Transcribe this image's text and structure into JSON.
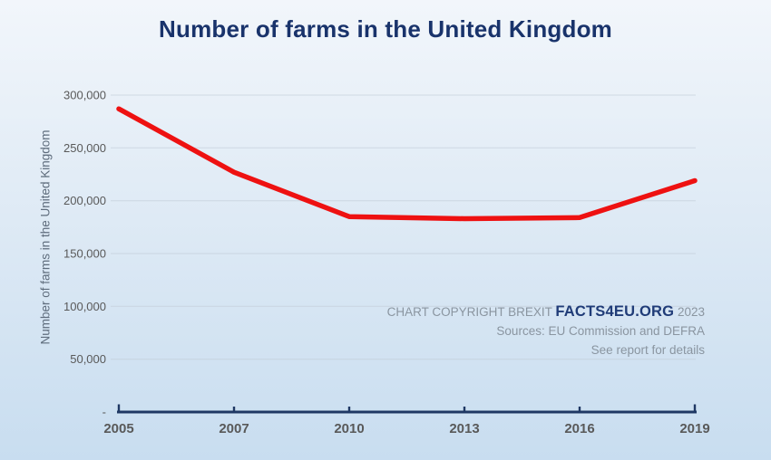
{
  "title": "Number of farms in the United Kingdom",
  "watermark": {
    "prefix": "CHART COPYRIGHT BREXIT",
    "brand": "FACTS4EU.ORG",
    "year": "2023",
    "sources": "Sources: EU Commission and DEFRA",
    "note": "See report for details"
  },
  "colors": {
    "title": "#19336b",
    "brand": "#203c78",
    "line": "#ee1111",
    "axis": "#1f3864",
    "tick_text": "#595959",
    "muted_text": "#8a95a0",
    "y_title": "#5f6d7d",
    "grid": "#c0cad5",
    "bg_top": "#f2f6fb",
    "bg_mid": "#dbe8f4",
    "bg_bottom": "#c8ddf0"
  },
  "chart_data": {
    "type": "line",
    "title": "Number of farms in the United Kingdom",
    "xlabel": "",
    "ylabel": "Number of farms in the United Kingdom",
    "categories": [
      "2005",
      "2007",
      "2010",
      "2013",
      "2016",
      "2019"
    ],
    "values": [
      287000,
      227000,
      185000,
      183000,
      184000,
      219000
    ],
    "series": [
      {
        "name": "Number of farms in the United Kingdom",
        "values": [
          287000,
          227000,
          185000,
          183000,
          184000,
          219000
        ]
      }
    ],
    "ylim": [
      0,
      300000
    ],
    "ytick_interval": 50000,
    "ytick_labels": [
      "-",
      "50,000",
      "100,000",
      "150,000",
      "200,000",
      "250,000",
      "300,000"
    ],
    "grid": true,
    "legend": "none",
    "annotations": [
      "CHART COPYRIGHT BREXIT FACTS4EU.ORG 2023",
      "Sources: EU Commission and DEFRA",
      "See report for details"
    ]
  }
}
